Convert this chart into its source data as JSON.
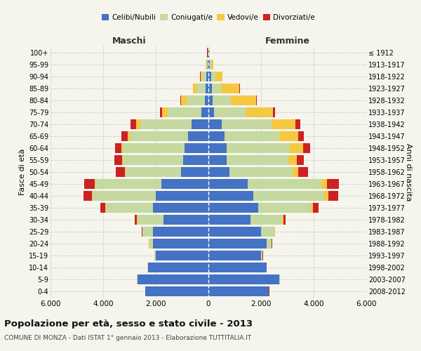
{
  "age_groups": [
    "0-4",
    "5-9",
    "10-14",
    "15-19",
    "20-24",
    "25-29",
    "30-34",
    "35-39",
    "40-44",
    "45-49",
    "50-54",
    "55-59",
    "60-64",
    "65-69",
    "70-74",
    "75-79",
    "80-84",
    "85-89",
    "90-94",
    "95-99",
    "100+"
  ],
  "birth_years": [
    "2008-2012",
    "2003-2007",
    "1998-2002",
    "1993-1997",
    "1988-1992",
    "1983-1987",
    "1978-1982",
    "1973-1977",
    "1968-1972",
    "1963-1967",
    "1958-1962",
    "1953-1957",
    "1948-1952",
    "1943-1947",
    "1938-1942",
    "1933-1937",
    "1928-1932",
    "1923-1927",
    "1918-1922",
    "1913-1917",
    "≤ 1912"
  ],
  "maschi": {
    "celibi": [
      2400,
      2700,
      2300,
      2000,
      2100,
      2100,
      1700,
      2100,
      2000,
      1800,
      1050,
      950,
      900,
      780,
      650,
      260,
      130,
      100,
      80,
      40,
      20
    ],
    "coniugati": [
      5,
      10,
      20,
      50,
      150,
      400,
      1000,
      1800,
      2400,
      2500,
      2100,
      2300,
      2350,
      2200,
      1950,
      1300,
      700,
      350,
      160,
      50,
      15
    ],
    "vedovi": [
      1,
      1,
      2,
      5,
      5,
      5,
      10,
      15,
      20,
      30,
      30,
      40,
      60,
      100,
      150,
      200,
      220,
      130,
      60,
      20,
      5
    ],
    "divorziati": [
      1,
      1,
      2,
      5,
      10,
      30,
      100,
      200,
      330,
      380,
      330,
      280,
      250,
      220,
      200,
      80,
      30,
      20,
      10,
      5,
      2
    ]
  },
  "femmine": {
    "nubili": [
      2300,
      2700,
      2200,
      2000,
      2200,
      2000,
      1600,
      1900,
      1700,
      1500,
      800,
      700,
      700,
      600,
      500,
      200,
      150,
      120,
      100,
      50,
      20
    ],
    "coniugate": [
      5,
      10,
      20,
      60,
      200,
      500,
      1200,
      2000,
      2700,
      2800,
      2400,
      2350,
      2400,
      2100,
      1900,
      1250,
      700,
      350,
      170,
      50,
      10
    ],
    "vedove": [
      1,
      2,
      2,
      5,
      10,
      20,
      50,
      80,
      150,
      200,
      200,
      300,
      500,
      700,
      900,
      1000,
      950,
      700,
      250,
      80,
      20
    ],
    "divorziate": [
      1,
      1,
      2,
      5,
      10,
      20,
      80,
      200,
      380,
      450,
      380,
      270,
      260,
      230,
      200,
      80,
      40,
      25,
      15,
      5,
      2
    ]
  },
  "colors": {
    "celibi": "#4472c4",
    "coniugati": "#c5d9a0",
    "vedovi": "#f5c842",
    "divorziati": "#cc2222"
  },
  "xlim": 6000,
  "title": "Popolazione per età, sesso e stato civile - 2013",
  "subtitle": "COMUNE DI MONZA - Dati ISTAT 1° gennaio 2013 - Elaborazione TUTTITALIA.IT",
  "ylabel_left": "Fasce di età",
  "ylabel_right": "Anni di nascita",
  "xlabel_left": "Maschi",
  "xlabel_right": "Femmine",
  "background_color": "#f5f5ee",
  "grid_color": "#cccccc"
}
